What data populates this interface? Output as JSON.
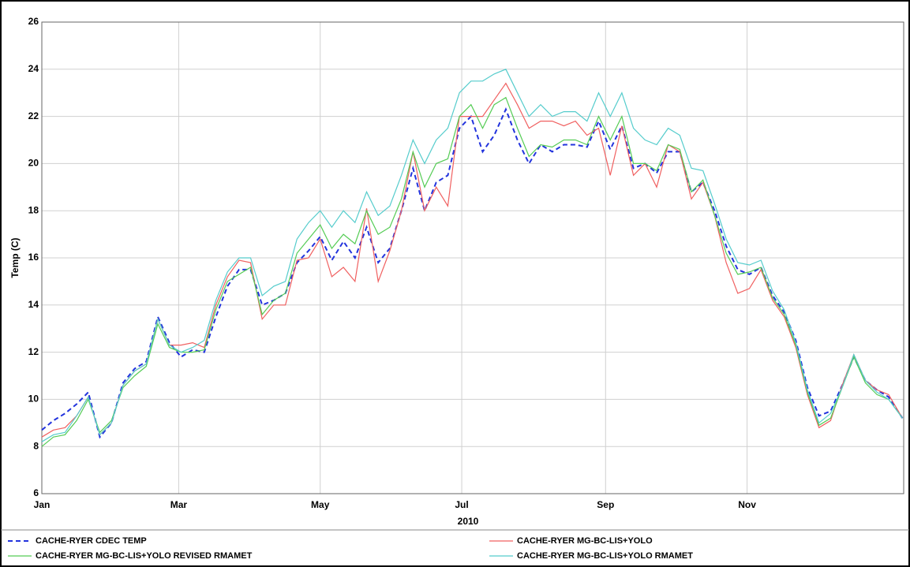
{
  "chart_data": {
    "type": "line",
    "y_label": "Temp (C)",
    "x_label": "2010",
    "x": [
      0,
      5,
      10,
      15,
      20,
      25,
      30,
      35,
      40,
      45,
      50,
      55,
      60,
      65,
      70,
      75,
      80,
      85,
      90,
      95,
      100,
      105,
      110,
      115,
      120,
      125,
      130,
      135,
      140,
      145,
      150,
      155,
      160,
      165,
      170,
      175,
      180,
      185,
      190,
      195,
      200,
      205,
      210,
      215,
      220,
      225,
      230,
      235,
      240,
      245,
      250,
      255,
      260,
      265,
      270,
      275,
      280,
      285,
      290,
      295,
      300,
      305,
      310,
      315,
      320,
      325,
      330,
      335,
      340,
      345,
      350,
      355,
      360,
      365,
      371
    ],
    "series": [
      {
        "name": "CACHE-RYER CDEC TEMP",
        "color": "#2233dd",
        "dashed": true,
        "values": [
          8.7,
          9.1,
          9.4,
          9.8,
          10.3,
          8.4,
          9.0,
          10.7,
          11.3,
          11.6,
          13.5,
          12.4,
          11.8,
          12.1,
          12.0,
          13.5,
          14.8,
          15.5,
          15.5,
          14.0,
          14.2,
          14.5,
          15.8,
          16.3,
          16.9,
          15.9,
          16.7,
          16.0,
          17.3,
          15.8,
          16.4,
          18.0,
          19.8,
          18.0,
          19.2,
          19.5,
          21.5,
          22.0,
          20.5,
          21.2,
          22.3,
          21.0,
          20.0,
          20.8,
          20.5,
          20.8,
          20.8,
          20.7,
          21.8,
          20.6,
          21.6,
          19.8,
          20.0,
          19.6,
          20.5,
          20.5,
          18.8,
          19.2,
          18.0,
          16.5,
          15.5,
          15.3,
          15.6,
          14.4,
          13.7,
          12.5,
          10.5,
          9.3,
          9.5,
          10.6,
          11.8,
          10.8,
          10.4,
          10.1,
          9.2
        ]
      },
      {
        "name": "CACHE-RYER MG-BC-LIS+YOLO",
        "color": "#f06060",
        "dashed": false,
        "values": [
          8.4,
          8.7,
          8.8,
          9.3,
          10.1,
          8.5,
          9.0,
          10.6,
          11.2,
          11.5,
          13.4,
          12.3,
          12.3,
          12.4,
          12.2,
          14.0,
          15.2,
          15.9,
          15.8,
          13.4,
          14.0,
          14.0,
          15.9,
          16.0,
          16.8,
          15.2,
          15.6,
          15.0,
          18.1,
          15.0,
          16.3,
          18.0,
          20.5,
          18.0,
          19.0,
          18.2,
          22.0,
          22.0,
          22.0,
          22.7,
          23.4,
          22.5,
          21.5,
          21.8,
          21.8,
          21.6,
          21.8,
          21.2,
          21.5,
          19.5,
          21.6,
          19.5,
          20.0,
          19.0,
          20.8,
          20.5,
          18.5,
          19.2,
          17.8,
          15.8,
          14.5,
          14.7,
          15.5,
          14.2,
          13.5,
          12.2,
          10.2,
          8.8,
          9.1,
          10.6,
          11.9,
          10.8,
          10.4,
          10.2,
          9.2
        ]
      },
      {
        "name": "CACHE-RYER MG-BC-LIS+YOLO REVISED RMAMET",
        "color": "#55cc55",
        "dashed": false,
        "values": [
          8.0,
          8.4,
          8.5,
          9.1,
          10.0,
          8.6,
          9.1,
          10.5,
          11.0,
          11.4,
          13.2,
          12.2,
          12.0,
          12.0,
          12.1,
          13.8,
          15.0,
          15.3,
          15.6,
          13.6,
          14.2,
          14.5,
          16.2,
          16.8,
          17.4,
          16.4,
          17.0,
          16.6,
          18.0,
          17.0,
          17.3,
          18.5,
          20.5,
          19.0,
          20.0,
          20.2,
          22.0,
          22.5,
          21.5,
          22.5,
          22.8,
          21.5,
          20.3,
          20.8,
          20.7,
          21.0,
          21.0,
          20.8,
          22.0,
          21.0,
          22.0,
          20.0,
          20.0,
          19.7,
          20.8,
          20.6,
          18.8,
          19.3,
          17.8,
          16.2,
          15.3,
          15.4,
          15.6,
          14.3,
          13.6,
          12.3,
          10.3,
          8.9,
          9.2,
          10.5,
          11.8,
          10.7,
          10.2,
          10.0,
          9.2
        ]
      },
      {
        "name": "CACHE-RYER MG-BC-LIS+YOLO RMAMET",
        "color": "#55cccc",
        "dashed": false,
        "values": [
          8.2,
          8.5,
          8.6,
          9.3,
          10.1,
          8.5,
          9.0,
          10.6,
          11.2,
          11.5,
          13.4,
          12.3,
          12.0,
          12.2,
          12.5,
          14.2,
          15.4,
          16.0,
          16.0,
          14.4,
          14.8,
          15.0,
          16.8,
          17.5,
          18.0,
          17.3,
          18.0,
          17.5,
          18.8,
          17.8,
          18.2,
          19.5,
          21.0,
          20.0,
          21.0,
          21.5,
          23.0,
          23.5,
          23.5,
          23.8,
          24.0,
          23.0,
          22.0,
          22.5,
          22.0,
          22.2,
          22.2,
          21.8,
          23.0,
          22.0,
          23.0,
          21.5,
          21.0,
          20.8,
          21.5,
          21.2,
          19.8,
          19.7,
          18.3,
          16.8,
          15.8,
          15.7,
          15.9,
          14.6,
          13.8,
          12.4,
          10.4,
          9.0,
          9.4,
          10.5,
          11.9,
          10.8,
          10.3,
          10.0,
          9.2
        ]
      }
    ],
    "xlim": [
      0,
      371.5
    ],
    "xticks": [
      {
        "value": 0,
        "label": "Jan"
      },
      {
        "value": 59,
        "label": "Mar"
      },
      {
        "value": 120,
        "label": "May"
      },
      {
        "value": 181,
        "label": "Jul"
      },
      {
        "value": 243,
        "label": "Sep"
      },
      {
        "value": 304,
        "label": "Nov"
      }
    ],
    "ylim": [
      6,
      26
    ],
    "yticks": [
      6,
      8,
      10,
      12,
      14,
      16,
      18,
      20,
      22,
      24,
      26
    ],
    "grid": true
  }
}
